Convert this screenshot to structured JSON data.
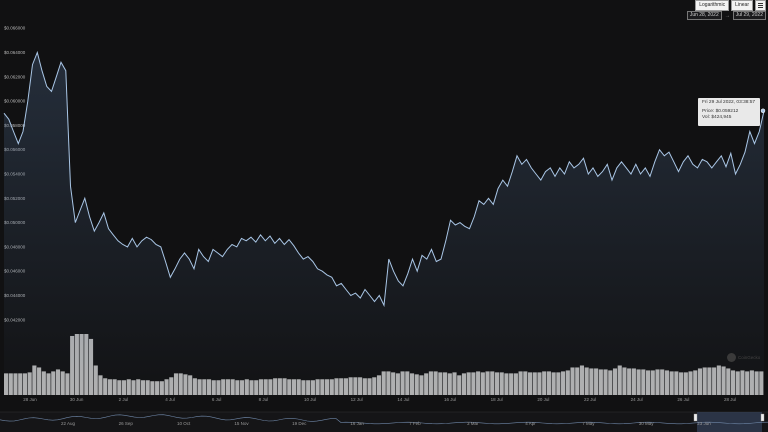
{
  "toolbar": {
    "logarithmic_label": "Logarithmic",
    "linear_label": "Linear"
  },
  "range": {
    "from": "Jun 28, 2022",
    "separator": "→",
    "to": "Jul 29, 2022"
  },
  "tooltip": {
    "date": "Fri 29 Jul 2022, 03:38:57",
    "price_label": "Price:",
    "price_value": "$0.059212",
    "vol_label": "Vol:",
    "vol_value": "$424,945"
  },
  "watermark": "CoinGecko",
  "colors": {
    "line": "#a9c6e6",
    "volume": "#cfcfcf",
    "background": "#111112",
    "navigator_mask": "#3b4a66"
  },
  "chart_data": {
    "type": "line",
    "y_tick_labels": [
      "$0.066000",
      "$0.064000",
      "$0.062000",
      "$0.060000",
      "$0.058000",
      "$0.056000",
      "$0.054000",
      "$0.052000",
      "$0.050000",
      "$0.048000",
      "$0.046000",
      "$0.044000",
      "$0.042000"
    ],
    "x_tick_labels": [
      "28 Jun",
      "30 Jun",
      "2 Jul",
      "4 Jul",
      "6 Jul",
      "8 Jul",
      "10 Jul",
      "12 Jul",
      "14 Jul",
      "16 Jul",
      "18 Jul",
      "20 Jul",
      "22 Jul",
      "24 Jul",
      "26 Jul",
      "28 Jul"
    ],
    "navigator_labels": [
      "22 Aug",
      "26 Sep",
      "10 Oct",
      "15 Nov",
      "19 Dec",
      "16 Jan",
      "7 Feb",
      "3 Mar",
      "4 Apr",
      "7 May",
      "30 May",
      "23 Jun"
    ],
    "ylim": [
      0.041,
      0.067
    ],
    "price": {
      "x": [
        0,
        1,
        2,
        3,
        4,
        5,
        6,
        7,
        8,
        9,
        10,
        11,
        12,
        13,
        14,
        15,
        16,
        17,
        18,
        19,
        20,
        21,
        22,
        23,
        24,
        25,
        26,
        27,
        28,
        29,
        30,
        31,
        32,
        33,
        34,
        35,
        36,
        37,
        38,
        39,
        40,
        41,
        42,
        43,
        44,
        45,
        46,
        47,
        48,
        49,
        50,
        51,
        52,
        53,
        54,
        55,
        56,
        57,
        58,
        59,
        60,
        61,
        62,
        63,
        64,
        65,
        66,
        67,
        68,
        69,
        70,
        71,
        72,
        73,
        74,
        75,
        76,
        77,
        78,
        79,
        80,
        81,
        82,
        83,
        84,
        85,
        86,
        87,
        88,
        89,
        90,
        91,
        92,
        93,
        94,
        95,
        96,
        97,
        98,
        99,
        100,
        101,
        102,
        103,
        104,
        105,
        106,
        107,
        108,
        109,
        110,
        111,
        112,
        113,
        114,
        115,
        116,
        117,
        118,
        119,
        120,
        121,
        122,
        123,
        124,
        125,
        126,
        127,
        128,
        129,
        130,
        131,
        132,
        133,
        134,
        135,
        136,
        137,
        138,
        139,
        140,
        141,
        142,
        143,
        144,
        145,
        146,
        147,
        148,
        149,
        150,
        151,
        152,
        153,
        154,
        155,
        156,
        157,
        158,
        159,
        160
      ],
      "y": [
        0.059,
        0.0585,
        0.0575,
        0.0565,
        0.0575,
        0.06,
        0.063,
        0.064,
        0.0625,
        0.0612,
        0.0608,
        0.062,
        0.0632,
        0.0625,
        0.053,
        0.05,
        0.051,
        0.052,
        0.0505,
        0.0493,
        0.05,
        0.0508,
        0.0495,
        0.049,
        0.0485,
        0.0482,
        0.048,
        0.0487,
        0.048,
        0.0485,
        0.0488,
        0.0486,
        0.0482,
        0.048,
        0.0468,
        0.0455,
        0.0462,
        0.047,
        0.0475,
        0.047,
        0.0462,
        0.0478,
        0.0472,
        0.0468,
        0.0478,
        0.0475,
        0.0472,
        0.0478,
        0.0482,
        0.048,
        0.0487,
        0.0485,
        0.0488,
        0.0484,
        0.049,
        0.0485,
        0.0489,
        0.0483,
        0.0487,
        0.0482,
        0.0486,
        0.0481,
        0.0475,
        0.047,
        0.0472,
        0.0468,
        0.0462,
        0.046,
        0.0457,
        0.0455,
        0.0448,
        0.045,
        0.0445,
        0.044,
        0.0442,
        0.0438,
        0.0445,
        0.044,
        0.0435,
        0.044,
        0.0432,
        0.047,
        0.046,
        0.0452,
        0.0448,
        0.0458,
        0.047,
        0.046,
        0.0473,
        0.047,
        0.0478,
        0.0468,
        0.047,
        0.0485,
        0.0502,
        0.0498,
        0.05,
        0.0497,
        0.0495,
        0.0505,
        0.0518,
        0.0515,
        0.052,
        0.0515,
        0.0528,
        0.0535,
        0.053,
        0.0542,
        0.0555,
        0.0548,
        0.0552,
        0.0545,
        0.054,
        0.0535,
        0.0542,
        0.0545,
        0.0538,
        0.0545,
        0.054,
        0.055,
        0.0545,
        0.0548,
        0.0553,
        0.054,
        0.0545,
        0.0538,
        0.0542,
        0.0548,
        0.0535,
        0.0545,
        0.055,
        0.0545,
        0.054,
        0.0548,
        0.054,
        0.0545,
        0.0538,
        0.055,
        0.056,
        0.0555,
        0.0558,
        0.055,
        0.0542,
        0.055,
        0.0555,
        0.0548,
        0.0545,
        0.0552,
        0.055,
        0.0545,
        0.055,
        0.0555,
        0.0546,
        0.0557,
        0.054,
        0.0548,
        0.0558,
        0.0575,
        0.0565,
        0.0575,
        0.0592
      ]
    },
    "volume": {
      "values": [
        22,
        22,
        22,
        22,
        22,
        23,
        30,
        28,
        24,
        22,
        24,
        26,
        24,
        22,
        60,
        62,
        62,
        62,
        57,
        30,
        20,
        17,
        16,
        16,
        15,
        15,
        16,
        15,
        16,
        15,
        15,
        14,
        14,
        14,
        16,
        18,
        22,
        22,
        21,
        20,
        17,
        16,
        16,
        16,
        15,
        15,
        16,
        16,
        16,
        15,
        15,
        16,
        15,
        15,
        16,
        16,
        16,
        17,
        17,
        17,
        16,
        16,
        16,
        15,
        15,
        15,
        16,
        16,
        16,
        16,
        17,
        17,
        17,
        18,
        18,
        18,
        17,
        17,
        18,
        20,
        24,
        24,
        23,
        22,
        24,
        24,
        22,
        21,
        20,
        22,
        24,
        24,
        23,
        23,
        22,
        23,
        20,
        22,
        23,
        23,
        24,
        23,
        24,
        24,
        23,
        23,
        22,
        22,
        22,
        24,
        24,
        23,
        23,
        23,
        24,
        24,
        23,
        23,
        24,
        25,
        28,
        28,
        30,
        28,
        27,
        27,
        26,
        26,
        25,
        27,
        30,
        28,
        27,
        27,
        26,
        26,
        25,
        25,
        26,
        26,
        25,
        24,
        24,
        23,
        23,
        24,
        25,
        27,
        28,
        28,
        28,
        30,
        29,
        27,
        25,
        24,
        25,
        24,
        25,
        24,
        24
      ]
    }
  }
}
